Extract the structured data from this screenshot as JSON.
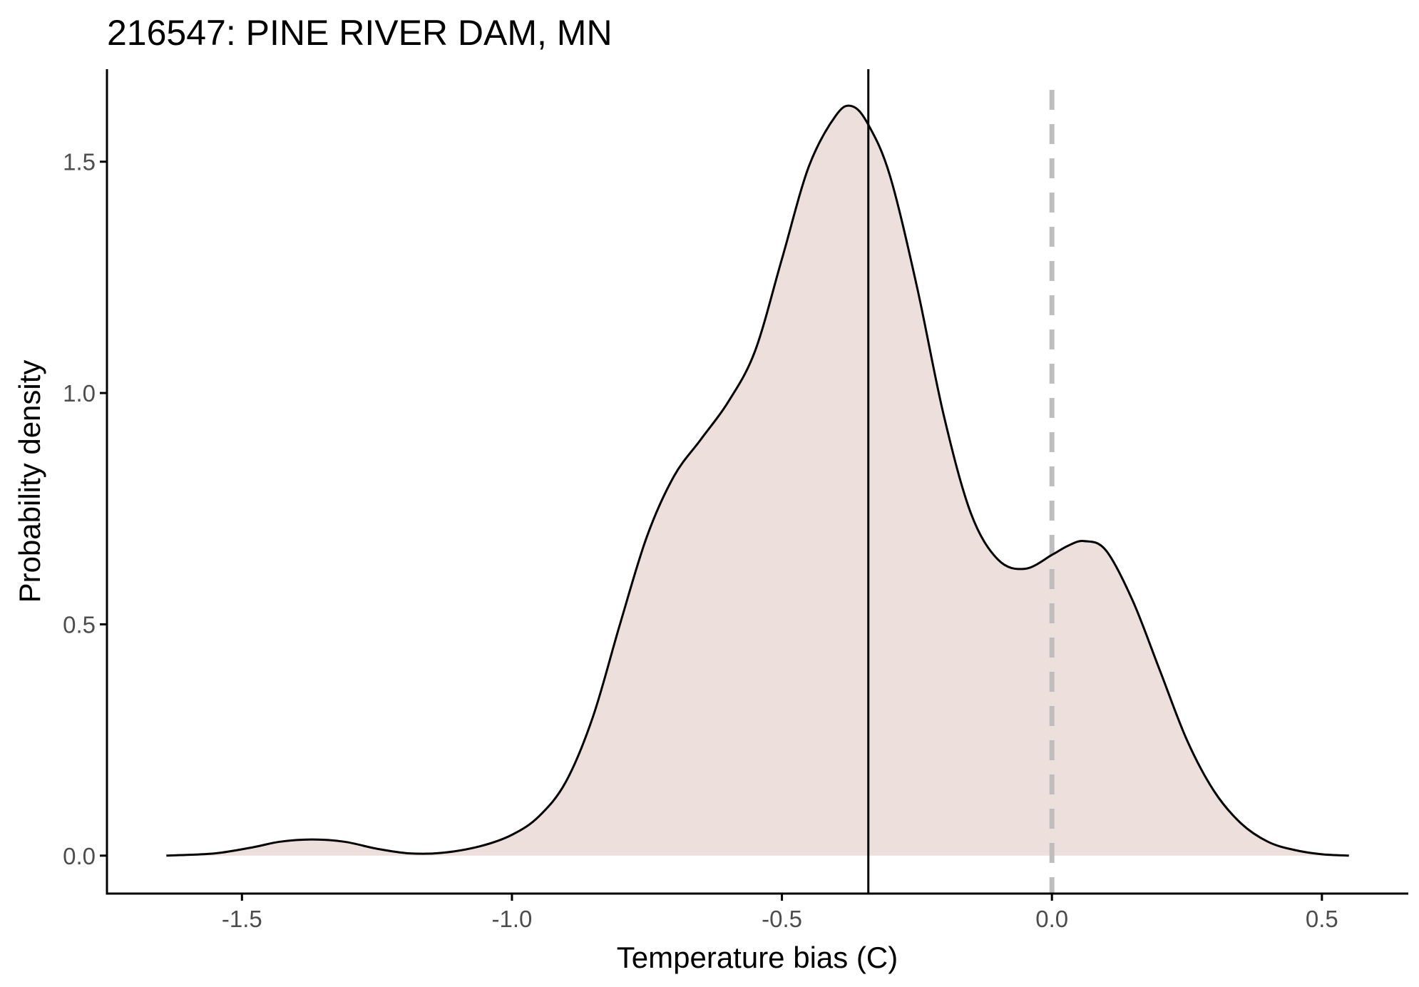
{
  "chart_data": {
    "type": "area",
    "title": "216547: PINE RIVER DAM, MN",
    "xlabel": "Temperature bias (C)",
    "ylabel": "Probability density",
    "xlim": [
      -1.75,
      0.66
    ],
    "ylim": [
      -0.082,
      1.7
    ],
    "x_ticks": [
      -1.5,
      -1.0,
      -0.5,
      0.0,
      0.5
    ],
    "x_tick_labels": [
      "-1.5",
      "-1.0",
      "-0.5",
      "0.0",
      "0.5"
    ],
    "y_ticks": [
      0.0,
      0.5,
      1.0,
      1.5
    ],
    "y_tick_labels": [
      "0.0",
      "0.5",
      "1.0",
      "1.5"
    ],
    "fill_color": "#ecdfdc",
    "line_color": "#000000",
    "reference_lines": [
      {
        "orientation": "vertical",
        "x": -0.34,
        "style": "solid",
        "color": "#000000"
      },
      {
        "orientation": "vertical",
        "x": 0.0,
        "style": "dashed",
        "color": "#bebebe"
      }
    ],
    "grid": false,
    "legend": "none",
    "series": [
      {
        "x": [
          -1.64,
          -1.55,
          -1.48,
          -1.43,
          -1.37,
          -1.31,
          -1.25,
          -1.19,
          -1.13,
          -1.06,
          -1.0,
          -0.95,
          -0.9,
          -0.85,
          -0.8,
          -0.75,
          -0.7,
          -0.65,
          -0.6,
          -0.55,
          -0.5,
          -0.45,
          -0.4,
          -0.37,
          -0.34,
          -0.3,
          -0.25,
          -0.2,
          -0.15,
          -0.1,
          -0.05,
          0.0,
          0.03,
          0.06,
          0.1,
          0.15,
          0.2,
          0.25,
          0.3,
          0.35,
          0.4,
          0.45,
          0.5,
          0.55
        ],
        "y": [
          0.0,
          0.005,
          0.018,
          0.03,
          0.035,
          0.03,
          0.015,
          0.005,
          0.006,
          0.02,
          0.045,
          0.085,
          0.16,
          0.3,
          0.5,
          0.69,
          0.82,
          0.9,
          0.98,
          1.09,
          1.29,
          1.49,
          1.6,
          1.62,
          1.58,
          1.47,
          1.23,
          0.95,
          0.74,
          0.64,
          0.62,
          0.65,
          0.67,
          0.68,
          0.66,
          0.55,
          0.4,
          0.25,
          0.14,
          0.07,
          0.03,
          0.012,
          0.003,
          0.0
        ]
      }
    ]
  }
}
